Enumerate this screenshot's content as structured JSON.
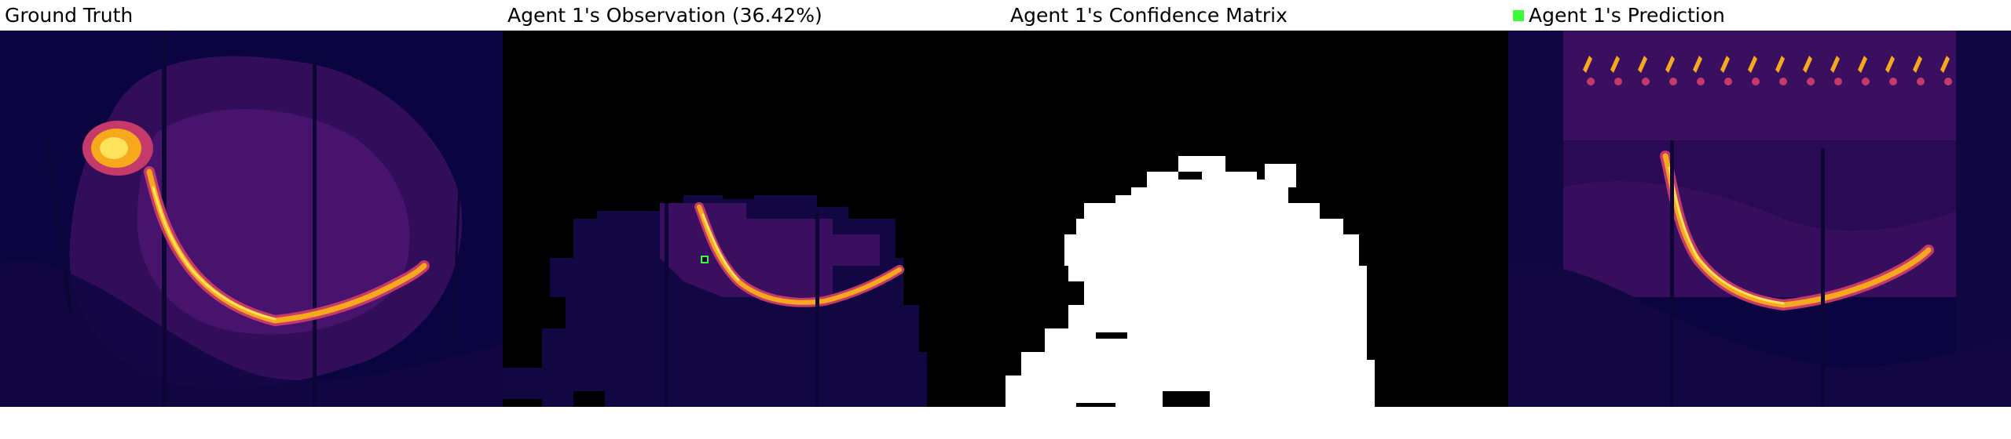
{
  "colors": {
    "background": "#ffffff",
    "heat_background": "#0a0540",
    "heat_mid": "#5a1a7a",
    "heat_hot": "#f7a91e",
    "heat_max": "#fde25c",
    "agent_marker": "#3cfa3c",
    "confidence_known": "#ffffff",
    "confidence_unknown": "#000000"
  },
  "panels": [
    {
      "title": "Ground Truth"
    },
    {
      "title": "Agent 1's Observation (36.42%)"
    },
    {
      "title": "Agent 1's Confidence Matrix"
    },
    {
      "title": "Agent 1's Prediction",
      "legend_swatch_icon": "green-square-icon"
    }
  ]
}
